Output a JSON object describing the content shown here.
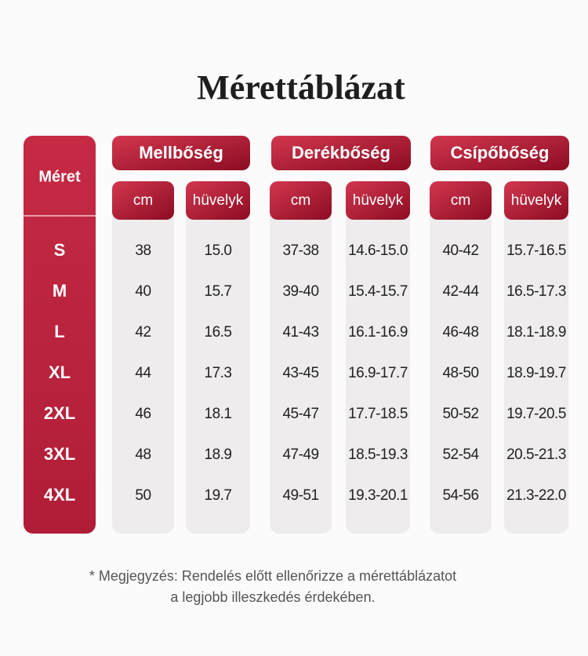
{
  "title": "Mérettáblázat",
  "table": {
    "size_header": "Méret",
    "groups": [
      {
        "name": "Mellbőség",
        "units": [
          "cm",
          "hüvelyk"
        ]
      },
      {
        "name": "Derékbőség",
        "units": [
          "cm",
          "hüvelyk"
        ]
      },
      {
        "name": "Csípőbőség",
        "units": [
          "cm",
          "hüvelyk"
        ]
      }
    ],
    "rows": [
      {
        "size": "S",
        "values": [
          "38",
          "15.0",
          "37-38",
          "14.6-15.0",
          "40-42",
          "15.7-16.5"
        ]
      },
      {
        "size": "M",
        "values": [
          "40",
          "15.7",
          "39-40",
          "15.4-15.7",
          "42-44",
          "16.5-17.3"
        ]
      },
      {
        "size": "L",
        "values": [
          "42",
          "16.5",
          "41-43",
          "16.1-16.9",
          "46-48",
          "18.1-18.9"
        ]
      },
      {
        "size": "XL",
        "values": [
          "44",
          "17.3",
          "43-45",
          "16.9-17.7",
          "48-50",
          "18.9-19.7"
        ]
      },
      {
        "size": "2XL",
        "values": [
          "46",
          "18.1",
          "45-47",
          "17.7-18.5",
          "50-52",
          "19.7-20.5"
        ]
      },
      {
        "size": "3XL",
        "values": [
          "48",
          "18.9",
          "47-49",
          "18.5-19.3",
          "52-54",
          "20.5-21.3"
        ]
      },
      {
        "size": "4XL",
        "values": [
          "50",
          "19.7",
          "49-51",
          "19.3-20.1",
          "54-56",
          "21.3-22.0"
        ]
      }
    ]
  },
  "note": [
    "* Megjegyzés: Rendelés előtt ellenőrizze a mérettáblázatot",
    "a legjobb illeszkedés érdekében."
  ]
}
